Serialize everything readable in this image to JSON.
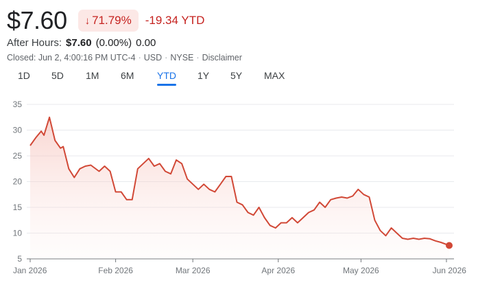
{
  "quote": {
    "price": "$7.60",
    "change_arrow": "↓",
    "change_pct": "71.79%",
    "change_abs_ytd": "-19.34 YTD"
  },
  "after_hours": {
    "label": "After Hours:",
    "price": "$7.60",
    "change_pct": "(0.00%)",
    "change_abs": "0.00"
  },
  "meta": {
    "closed": "Closed: Jun 2, 4:00:16 PM UTC-4",
    "currency": "USD",
    "exchange": "NYSE",
    "disclaimer": "Disclaimer"
  },
  "ranges": {
    "items": [
      "1D",
      "5D",
      "1M",
      "6M",
      "YTD",
      "1Y",
      "5Y",
      "MAX"
    ],
    "active": "YTD"
  },
  "colors": {
    "line": "#d14836",
    "fill": "#fbe3e0",
    "negative": "#c5221f",
    "accent": "#1a73e8"
  },
  "chart_data": {
    "type": "area",
    "x_tick_labels": [
      "Jan 2026",
      "Feb 2026",
      "Mar 2026",
      "Apr 2026",
      "May 2026",
      "Jun 2026"
    ],
    "y_tick_labels": [
      "5",
      "10",
      "15",
      "20",
      "25",
      "30",
      "35"
    ],
    "ylim": [
      5,
      35
    ],
    "grid": true,
    "series": [
      {
        "x": [
          "2026-01-01",
          "2026-01-03",
          "2026-01-05",
          "2026-01-06",
          "2026-01-08",
          "2026-01-10",
          "2026-01-12",
          "2026-01-13",
          "2026-01-15",
          "2026-01-17",
          "2026-01-19",
          "2026-01-21",
          "2026-01-23",
          "2026-01-26",
          "2026-01-28",
          "2026-01-30",
          "2026-02-01",
          "2026-02-03",
          "2026-02-05",
          "2026-02-07",
          "2026-02-09",
          "2026-02-11",
          "2026-02-13",
          "2026-02-15",
          "2026-02-17",
          "2026-02-19",
          "2026-02-21",
          "2026-02-23",
          "2026-02-25",
          "2026-02-27",
          "2026-03-01",
          "2026-03-03",
          "2026-03-05",
          "2026-03-07",
          "2026-03-09",
          "2026-03-11",
          "2026-03-13",
          "2026-03-15",
          "2026-03-17",
          "2026-03-19",
          "2026-03-21",
          "2026-03-23",
          "2026-03-25",
          "2026-03-27",
          "2026-03-29",
          "2026-03-31",
          "2026-04-02",
          "2026-04-04",
          "2026-04-06",
          "2026-04-08",
          "2026-04-10",
          "2026-04-12",
          "2026-04-14",
          "2026-04-16",
          "2026-04-18",
          "2026-04-20",
          "2026-04-22",
          "2026-04-24",
          "2026-04-26",
          "2026-04-28",
          "2026-04-30",
          "2026-05-02",
          "2026-05-04",
          "2026-05-06",
          "2026-05-08",
          "2026-05-10",
          "2026-05-12",
          "2026-05-14",
          "2026-05-16",
          "2026-05-18",
          "2026-05-20",
          "2026-05-22",
          "2026-05-24",
          "2026-05-26",
          "2026-05-28",
          "2026-05-30",
          "2026-06-01",
          "2026-06-02"
        ],
        "y": [
          27.0,
          28.5,
          29.8,
          29.0,
          32.5,
          28.0,
          26.5,
          26.8,
          22.5,
          20.8,
          22.5,
          23.0,
          23.2,
          22.0,
          23.0,
          22.0,
          18.0,
          18.0,
          16.5,
          16.5,
          22.5,
          23.5,
          24.5,
          23.0,
          23.5,
          22.0,
          21.5,
          24.2,
          23.5,
          20.5,
          19.5,
          18.5,
          19.5,
          18.5,
          18.0,
          19.5,
          21.0,
          21.0,
          16.0,
          15.5,
          14.0,
          13.5,
          15.0,
          13.0,
          11.5,
          11.0,
          12.0,
          12.0,
          13.0,
          12.0,
          13.0,
          14.0,
          14.5,
          16.0,
          15.0,
          16.5,
          16.8,
          17.0,
          16.8,
          17.2,
          18.5,
          17.5,
          17.0,
          12.5,
          10.5,
          9.5,
          11.0,
          10.0,
          9.0,
          8.8,
          9.0,
          8.8,
          9.0,
          8.9,
          8.5,
          8.2,
          7.8,
          7.6
        ]
      }
    ]
  }
}
